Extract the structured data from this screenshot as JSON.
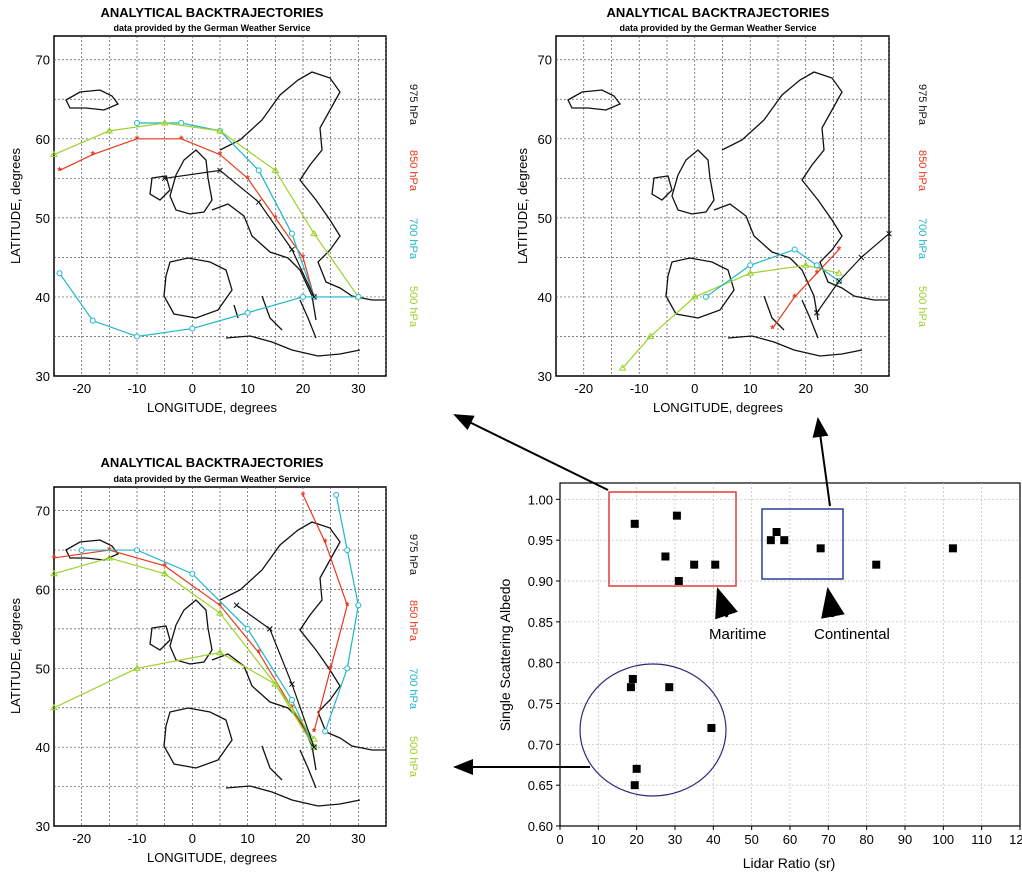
{
  "panels": [
    {
      "title": "ANALYTICAL BACKTRAJECTORIES",
      "subtitle": "data provided by the German Weather Service",
      "xlabel": "LONGITUDE, degrees",
      "ylabel": "LATITUDE, degrees",
      "xticks": [
        "-20",
        "-10",
        "0",
        "10",
        "20",
        "30"
      ],
      "yticks": [
        "30",
        "40",
        "50",
        "60",
        "70"
      ],
      "legend": [
        "975 hPa",
        "850 hPa",
        "700 hPa",
        "500 hPa"
      ]
    },
    {
      "title": "ANALYTICAL BACKTRAJECTORIES",
      "subtitle": "data provided by the German Weather Service",
      "xlabel": "LONGITUDE, degrees",
      "ylabel": "LATITUDE, degrees",
      "xticks": [
        "-20",
        "-10",
        "0",
        "10",
        "20",
        "30"
      ],
      "yticks": [
        "30",
        "40",
        "50",
        "60",
        "70"
      ],
      "legend": [
        "975 hPa",
        "850 hPa",
        "700 hPa",
        "500 hPa"
      ]
    },
    {
      "title": "ANALYTICAL BACKTRAJECTORIES",
      "subtitle": "data provided by the German Weather Service",
      "xlabel": "LONGITUDE, degrees",
      "ylabel": "LATITUDE, degrees",
      "xticks": [
        "-20",
        "-10",
        "0",
        "10",
        "20",
        "30"
      ],
      "yticks": [
        "30",
        "40",
        "50",
        "60",
        "70"
      ],
      "legend": [
        "975 hPa",
        "850 hPa",
        "700 hPa",
        "500 hPa"
      ]
    }
  ],
  "legend_colors": [
    "#111111",
    "#e8381c",
    "#1fb6c8",
    "#9bd22a"
  ],
  "chart_data": [
    {
      "type": "line",
      "panel": "top-left",
      "title": "ANALYTICAL BACKTRAJECTORIES",
      "subtitle": "data provided by the German Weather Service",
      "xlabel": "LONGITUDE, degrees",
      "ylabel": "LATITUDE, degrees",
      "xlim": [
        -25,
        35
      ],
      "ylim": [
        30,
        73
      ],
      "series": [
        {
          "name": "850 hPa",
          "color": "#e8381c",
          "x": [
            -24,
            -18,
            -10,
            -2,
            5,
            10,
            15,
            20,
            22
          ],
          "y": [
            56,
            58,
            60,
            60,
            58,
            55,
            50,
            45,
            40
          ]
        },
        {
          "name": "700 hPa",
          "color": "#1fb6c8",
          "x": [
            -10,
            -2,
            5,
            12,
            18,
            22
          ],
          "y": [
            62,
            62,
            61,
            56,
            48,
            40
          ]
        },
        {
          "name": "500 hPa",
          "color": "#9bd22a",
          "x": [
            -25,
            -15,
            -5,
            5,
            15,
            22,
            30
          ],
          "y": [
            58,
            61,
            62,
            61,
            56,
            48,
            40
          ]
        },
        {
          "name": "700 hPa",
          "color": "#1fb6c8",
          "x": [
            -24,
            -18,
            -10,
            0,
            10,
            20,
            30
          ],
          "y": [
            43,
            37,
            35,
            36,
            38,
            40,
            40
          ]
        },
        {
          "name": "975 hPa",
          "color": "#111111",
          "x": [
            -5,
            5,
            12,
            18,
            22
          ],
          "y": [
            55,
            56,
            52,
            46,
            40
          ]
        }
      ]
    },
    {
      "type": "line",
      "panel": "top-right",
      "title": "ANALYTICAL BACKTRAJECTORIES",
      "subtitle": "data provided by the German Weather Service",
      "xlabel": "LONGITUDE, degrees",
      "ylabel": "LATITUDE, degrees",
      "xlim": [
        -25,
        35
      ],
      "ylim": [
        30,
        73
      ],
      "series": [
        {
          "name": "500 hPa",
          "color": "#9bd22a",
          "x": [
            -13,
            -8,
            0,
            10,
            20,
            26
          ],
          "y": [
            31,
            35,
            40,
            43,
            44,
            43
          ]
        },
        {
          "name": "700 hPa",
          "color": "#1fb6c8",
          "x": [
            2,
            10,
            18,
            22,
            26
          ],
          "y": [
            40,
            44,
            46,
            44,
            42
          ]
        },
        {
          "name": "850 hPa",
          "color": "#e8381c",
          "x": [
            14,
            18,
            22,
            26
          ],
          "y": [
            36,
            40,
            43,
            46
          ]
        },
        {
          "name": "975 hPa",
          "color": "#111111",
          "x": [
            22,
            26,
            30,
            35
          ],
          "y": [
            38,
            42,
            45,
            48
          ]
        }
      ]
    },
    {
      "type": "line",
      "panel": "bottom-left",
      "title": "ANALYTICAL BACKTRAJECTORIES",
      "subtitle": "data provided by the German Weather Service",
      "xlabel": "LONGITUDE, degrees",
      "ylabel": "LATITUDE, degrees",
      "xlim": [
        -25,
        35
      ],
      "ylim": [
        30,
        73
      ],
      "series": [
        {
          "name": "850 hPa",
          "color": "#e8381c",
          "x": [
            -25,
            -15,
            -5,
            5,
            12,
            18,
            22
          ],
          "y": [
            64,
            65,
            63,
            58,
            52,
            45,
            40
          ]
        },
        {
          "name": "850 hPa",
          "color": "#e8381c",
          "x": [
            20,
            24,
            28,
            25,
            22
          ],
          "y": [
            72,
            66,
            58,
            50,
            42
          ]
        },
        {
          "name": "700 hPa",
          "color": "#1fb6c8",
          "x": [
            -20,
            -10,
            0,
            10,
            18,
            22
          ],
          "y": [
            65,
            65,
            62,
            55,
            46,
            40
          ]
        },
        {
          "name": "700 hPa",
          "color": "#1fb6c8",
          "x": [
            26,
            28,
            30,
            28,
            24
          ],
          "y": [
            72,
            65,
            58,
            50,
            42
          ]
        },
        {
          "name": "500 hPa",
          "color": "#9bd22a",
          "x": [
            -25,
            -10,
            5,
            15,
            22
          ],
          "y": [
            45,
            50,
            52,
            48,
            41
          ]
        },
        {
          "name": "500 hPa",
          "color": "#9bd22a",
          "x": [
            -25,
            -15,
            -5,
            5,
            15,
            22
          ],
          "y": [
            62,
            64,
            62,
            57,
            48,
            40
          ]
        },
        {
          "name": "975 hPa",
          "color": "#111111",
          "x": [
            8,
            14,
            18,
            22
          ],
          "y": [
            58,
            55,
            48,
            40
          ]
        }
      ]
    },
    {
      "type": "scatter",
      "panel": "bottom-right",
      "title": "",
      "xlabel": "Lidar Ratio (sr)",
      "ylabel": "Single Scattering Albedo",
      "xlim": [
        0,
        120
      ],
      "ylim": [
        0.6,
        1.02
      ],
      "xticks": [
        "0",
        "10",
        "20",
        "30",
        "40",
        "50",
        "60",
        "70",
        "80",
        "90",
        "100",
        "110",
        "120"
      ],
      "yticks": [
        "0.60",
        "0.65",
        "0.70",
        "0.75",
        "0.80",
        "0.85",
        "0.90",
        "0.95",
        "1.00"
      ],
      "grid": true,
      "points": [
        {
          "x": 19.5,
          "y": 0.97
        },
        {
          "x": 27.5,
          "y": 0.93
        },
        {
          "x": 30.5,
          "y": 0.98
        },
        {
          "x": 31,
          "y": 0.9
        },
        {
          "x": 35,
          "y": 0.92
        },
        {
          "x": 40.5,
          "y": 0.92
        },
        {
          "x": 55,
          "y": 0.95
        },
        {
          "x": 56.5,
          "y": 0.96
        },
        {
          "x": 58.5,
          "y": 0.95
        },
        {
          "x": 68,
          "y": 0.94
        },
        {
          "x": 82.5,
          "y": 0.92
        },
        {
          "x": 102.5,
          "y": 0.94
        },
        {
          "x": 19,
          "y": 0.78
        },
        {
          "x": 18.5,
          "y": 0.77
        },
        {
          "x": 28.5,
          "y": 0.77
        },
        {
          "x": 20,
          "y": 0.67
        },
        {
          "x": 19.5,
          "y": 0.65
        },
        {
          "x": 39.5,
          "y": 0.72
        }
      ],
      "annotations": [
        {
          "label": "Maritime",
          "box_color": "#e33b3b"
        },
        {
          "label": "Continental",
          "box_color": "#2a3f9a"
        }
      ]
    }
  ]
}
